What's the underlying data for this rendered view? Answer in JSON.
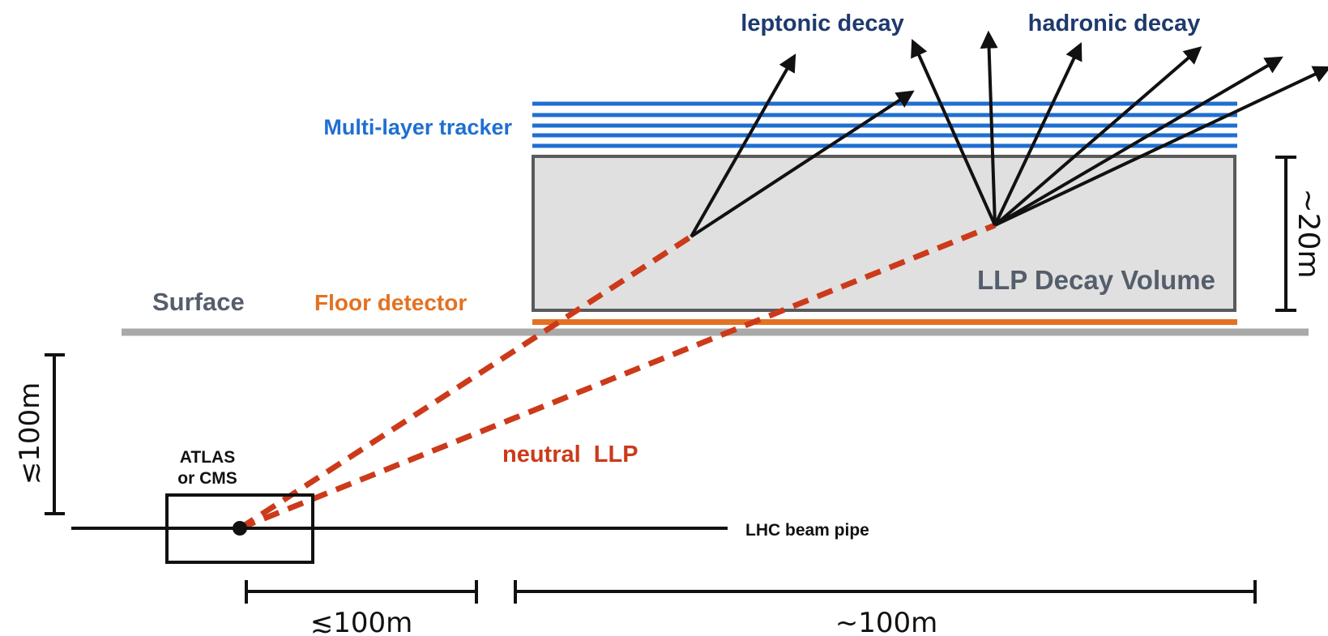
{
  "labels": {
    "leptonic_decay": "leptonic decay",
    "hadronic_decay": "hadronic decay",
    "tracker": "Multi-layer tracker",
    "surface": "Surface",
    "floor_detector": "Floor detector",
    "decay_volume": "LLP Decay Volume",
    "height_dim": "~20m",
    "depth_dim": "≲100m",
    "atlas_line1": "ATLAS",
    "atlas_line2": "or CMS",
    "neutral_llp": "neutral  LLP",
    "beam_pipe": "LHC beam pipe",
    "horiz_dim_left": "≲100m",
    "horiz_dim_right": "~100m"
  },
  "colors": {
    "tracker_blue": "#1f6fd1",
    "label_navy": "#1e3a6e",
    "floor_orange": "#e37222",
    "llp_red": "#cc3a1a",
    "surface_gray": "#a9a9a9",
    "volume_fill": "#e0e0e0",
    "volume_border": "#5a5a5a",
    "surface_text": "#555e6b",
    "black": "#111111"
  }
}
